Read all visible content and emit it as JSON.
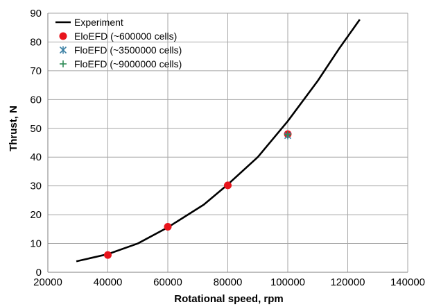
{
  "chart_data": {
    "type": "line",
    "xlabel": "Rotational speed, rpm",
    "ylabel": "Thrust, N",
    "xlim": [
      20000,
      140000
    ],
    "ylim": [
      0,
      90
    ],
    "xticks": [
      20000,
      40000,
      60000,
      80000,
      100000,
      120000,
      140000
    ],
    "yticks": [
      0,
      10,
      20,
      30,
      40,
      50,
      60,
      70,
      80,
      90
    ],
    "grid": true,
    "legend_position": "top-left",
    "series": [
      {
        "name": "Experiment",
        "kind": "line",
        "color": "#000000",
        "x": [
          29500,
          40000,
          50000,
          60000,
          72000,
          80000,
          90000,
          100000,
          110000,
          117000,
          124000
        ],
        "y": [
          3.8,
          6.3,
          10.0,
          15.6,
          23.5,
          30.5,
          40.0,
          52.5,
          66.5,
          77.5,
          87.8
        ]
      },
      {
        "name": "EloEFD (~600000 cells)",
        "kind": "scatter",
        "marker": "circle",
        "color": "#e8141c",
        "x": [
          40000,
          60000,
          80000,
          100000
        ],
        "y": [
          6.0,
          15.8,
          30.2,
          48.0
        ]
      },
      {
        "name": "FloEFD (~3500000 cells)",
        "kind": "scatter",
        "marker": "asterisk",
        "color": "#3a7fa3",
        "x": [
          100000
        ],
        "y": [
          47.5
        ]
      },
      {
        "name": "FloEFD (~9000000 cells)",
        "kind": "scatter",
        "marker": "plus",
        "color": "#2e8b57",
        "x": [
          100000
        ],
        "y": [
          47.8
        ]
      }
    ]
  }
}
